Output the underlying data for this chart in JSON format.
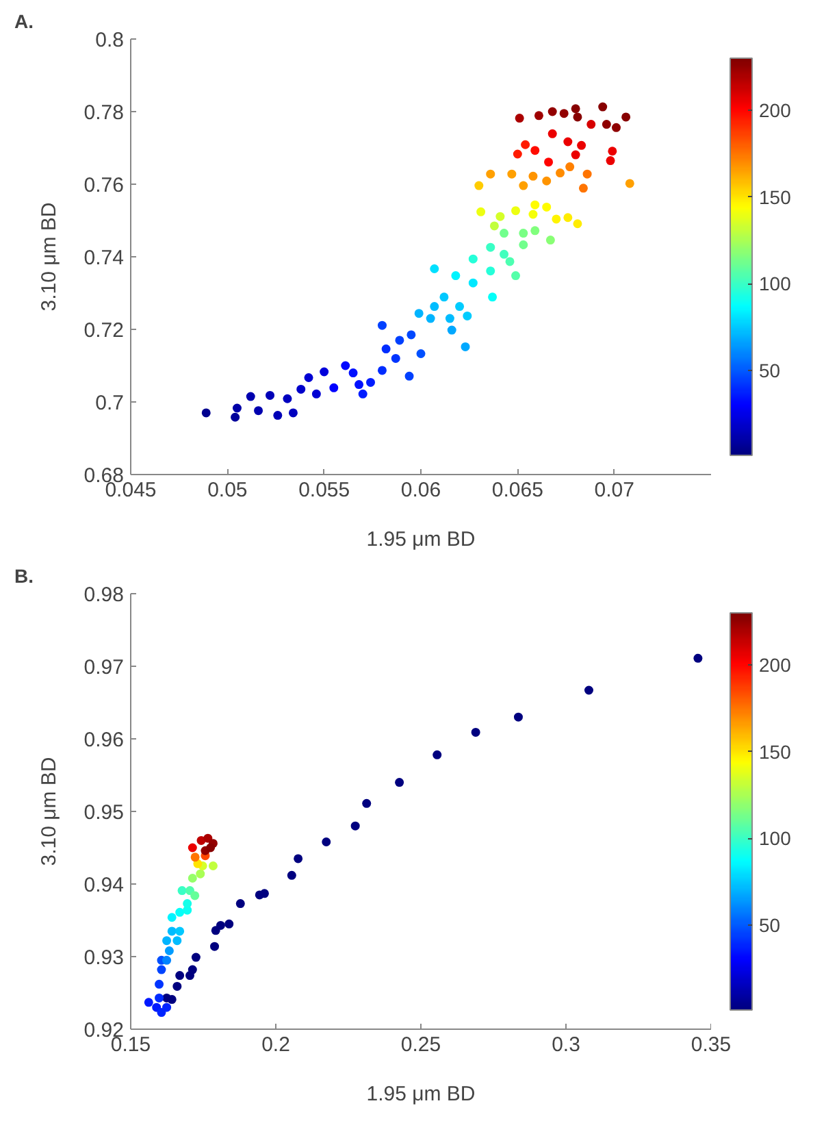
{
  "chart_data": [
    {
      "type": "scatter",
      "title": "A.",
      "xlabel": "1.95 μm BD",
      "ylabel": "3.10 μm BD",
      "marker": "circle",
      "grid": false,
      "xlim": [
        0.045,
        0.075
      ],
      "xticks": [
        0.045,
        0.05,
        0.055,
        0.06,
        0.065,
        0.07
      ],
      "ylim": [
        0.68,
        0.8
      ],
      "yticks": [
        0.68,
        0.7,
        0.72,
        0.74,
        0.76,
        0.78,
        0.8
      ],
      "clim": [
        1,
        230
      ],
      "cticks": [
        50,
        100,
        150,
        200
      ],
      "x": [
        0.0489,
        0.0504,
        0.0505,
        0.0512,
        0.0516,
        0.0522,
        0.0526,
        0.0531,
        0.0534,
        0.0538,
        0.0542,
        0.0546,
        0.055,
        0.0555,
        0.0561,
        0.0565,
        0.0568,
        0.0574,
        0.057,
        0.058,
        0.058,
        0.0582,
        0.0587,
        0.0589,
        0.0594,
        0.0595,
        0.06,
        0.0599,
        0.0605,
        0.0607,
        0.0612,
        0.0615,
        0.0616,
        0.0623,
        0.062,
        0.0624,
        0.0618,
        0.0607,
        0.0627,
        0.0637,
        0.0627,
        0.0636,
        0.0636,
        0.0643,
        0.0646,
        0.0649,
        0.0643,
        0.0653,
        0.0653,
        0.0659,
        0.0667,
        0.0631,
        0.0641,
        0.0638,
        0.0649,
        0.0658,
        0.0659,
        0.0665,
        0.067,
        0.0676,
        0.0681,
        0.063,
        0.0636,
        0.0647,
        0.0653,
        0.0658,
        0.0665,
        0.0672,
        0.0677,
        0.0684,
        0.0686,
        0.0708,
        0.065,
        0.0654,
        0.0659,
        0.0666,
        0.0668,
        0.0676,
        0.068,
        0.0683,
        0.0688,
        0.0698,
        0.0699,
        0.0651,
        0.0661,
        0.0668,
        0.0674,
        0.068,
        0.0681,
        0.0694,
        0.0706,
        0.0701,
        0.0696
      ],
      "values": [
        0.697,
        0.6958,
        0.6983,
        0.7015,
        0.6976,
        0.7018,
        0.6963,
        0.7009,
        0.697,
        0.7035,
        0.7067,
        0.7022,
        0.7083,
        0.7039,
        0.71,
        0.708,
        0.7048,
        0.7054,
        0.7022,
        0.7087,
        0.7211,
        0.7146,
        0.712,
        0.717,
        0.7071,
        0.7185,
        0.7133,
        0.7244,
        0.723,
        0.7263,
        0.7289,
        0.723,
        0.7198,
        0.7152,
        0.7263,
        0.7237,
        0.7348,
        0.7367,
        0.7328,
        0.7289,
        0.7394,
        0.7361,
        0.7426,
        0.7407,
        0.7387,
        0.7348,
        0.7465,
        0.7433,
        0.7465,
        0.7472,
        0.7446,
        0.7524,
        0.7511,
        0.7485,
        0.7527,
        0.7517,
        0.7543,
        0.7537,
        0.7504,
        0.7508,
        0.7491,
        0.7596,
        0.7628,
        0.7628,
        0.7596,
        0.7622,
        0.7609,
        0.7631,
        0.7648,
        0.7589,
        0.7628,
        0.7602,
        0.7683,
        0.7709,
        0.7693,
        0.7661,
        0.7739,
        0.7717,
        0.7681,
        0.7707,
        0.7765,
        0.7665,
        0.7691,
        0.7782,
        0.7789,
        0.78,
        0.7795,
        0.7808,
        0.7785,
        0.7813,
        0.7785,
        0.7756,
        0.7765
      ],
      "cvalues": [
        5,
        8,
        10,
        12,
        12,
        14,
        14,
        16,
        16,
        18,
        20,
        20,
        22,
        30,
        32,
        34,
        34,
        36,
        36,
        40,
        44,
        40,
        42,
        44,
        44,
        46,
        48,
        70,
        70,
        72,
        75,
        72,
        68,
        68,
        76,
        76,
        85,
        80,
        82,
        88,
        95,
        95,
        100,
        102,
        104,
        106,
        112,
        112,
        114,
        116,
        118,
        140,
        135,
        130,
        140,
        142,
        145,
        145,
        146,
        148,
        148,
        155,
        165,
        165,
        165,
        168,
        168,
        170,
        172,
        175,
        175,
        165,
        195,
        195,
        198,
        200,
        205,
        205,
        205,
        205,
        210,
        205,
        205,
        220,
        222,
        225,
        225,
        228,
        228,
        228,
        228,
        226,
        226
      ]
    },
    {
      "type": "scatter",
      "title": "B.",
      "xlabel": "1.95 μm BD",
      "ylabel": "3.10 μm BD",
      "marker": "circle",
      "grid": false,
      "xlim": [
        0.15,
        0.35
      ],
      "xticks": [
        0.15,
        0.2,
        0.25,
        0.3,
        0.35
      ],
      "ylim": [
        0.92,
        0.98
      ],
      "yticks": [
        0.92,
        0.93,
        0.94,
        0.95,
        0.96,
        0.97,
        0.98
      ],
      "clim": [
        1,
        230
      ],
      "cticks": [
        50,
        100,
        150,
        200
      ],
      "x": [
        0.3455,
        0.3079,
        0.2836,
        0.2689,
        0.2556,
        0.2426,
        0.2313,
        0.2274,
        0.2174,
        0.2077,
        0.2055,
        0.1961,
        0.1944,
        0.1878,
        0.1839,
        0.181,
        0.1793,
        0.1789,
        0.1725,
        0.1713,
        0.1704,
        0.1669,
        0.166,
        0.1642,
        0.1624,
        0.1562,
        0.1589,
        0.1606,
        0.1624,
        0.1598,
        0.1598,
        0.1606,
        0.1606,
        0.1624,
        0.1633,
        0.1624,
        0.1642,
        0.166,
        0.1669,
        0.1642,
        0.1669,
        0.1695,
        0.1695,
        0.1677,
        0.1704,
        0.1721,
        0.1713,
        0.174,
        0.1784,
        0.1748,
        0.1731,
        0.1722,
        0.1757,
        0.1713,
        0.1743,
        0.1766,
        0.1784,
        0.1757,
        0.1775
      ],
      "values": [
        0.9711,
        0.9667,
        0.963,
        0.9609,
        0.9578,
        0.954,
        0.9511,
        0.948,
        0.9458,
        0.9435,
        0.9412,
        0.9387,
        0.9385,
        0.9373,
        0.9345,
        0.9343,
        0.9336,
        0.9314,
        0.9299,
        0.9282,
        0.9274,
        0.9274,
        0.9259,
        0.9241,
        0.9243,
        0.9237,
        0.923,
        0.9223,
        0.923,
        0.9243,
        0.9262,
        0.9282,
        0.9295,
        0.9295,
        0.9308,
        0.9322,
        0.9335,
        0.9322,
        0.9335,
        0.9354,
        0.9361,
        0.9364,
        0.9373,
        0.9391,
        0.9391,
        0.9384,
        0.9408,
        0.9414,
        0.9425,
        0.9425,
        0.9428,
        0.9437,
        0.9439,
        0.945,
        0.946,
        0.9463,
        0.9456,
        0.9446,
        0.945
      ],
      "cvalues": [
        1,
        1,
        1,
        1,
        1,
        1,
        1,
        1,
        1,
        1,
        1,
        1,
        1,
        1,
        1,
        1,
        1,
        1,
        1,
        1,
        1,
        1,
        1,
        1,
        1,
        35,
        35,
        38,
        38,
        40,
        42,
        45,
        48,
        60,
        65,
        70,
        72,
        72,
        75,
        85,
        88,
        90,
        92,
        100,
        105,
        110,
        120,
        125,
        130,
        135,
        150,
        175,
        185,
        205,
        215,
        220,
        225,
        225,
        228
      ]
    }
  ]
}
